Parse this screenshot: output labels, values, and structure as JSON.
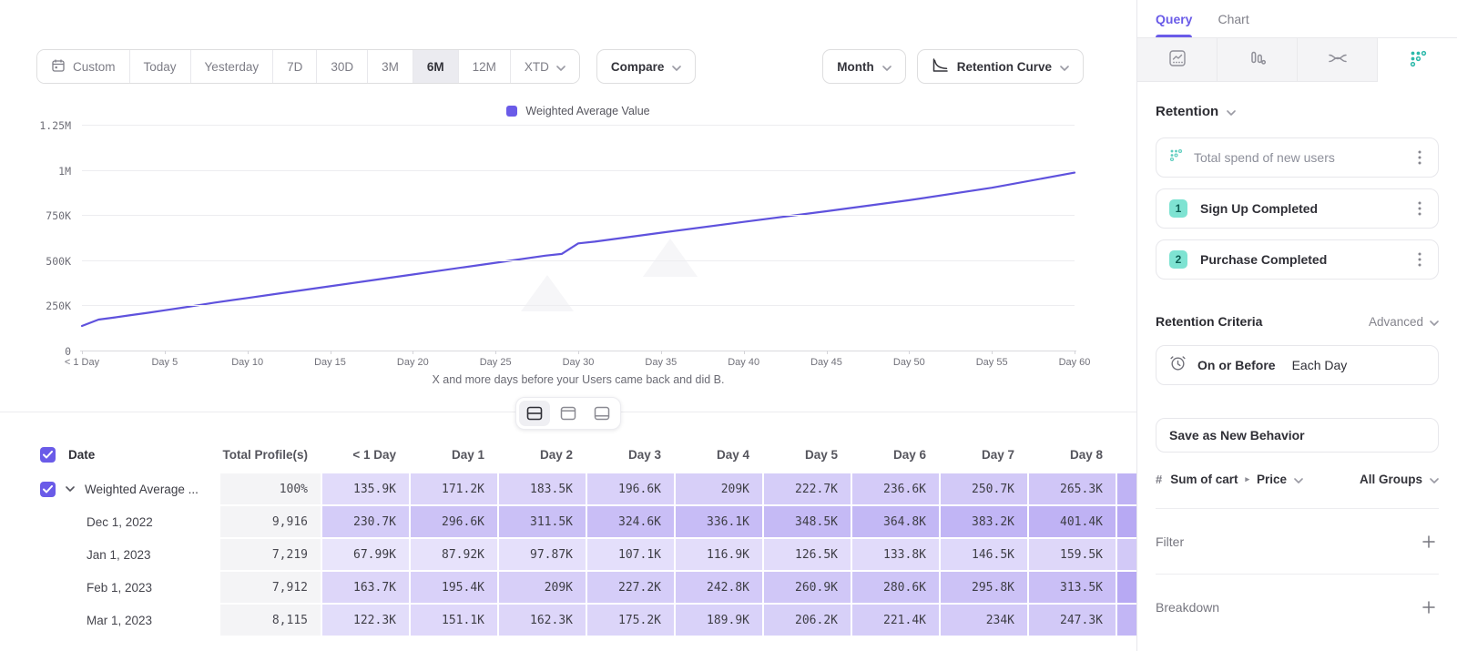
{
  "toolbar": {
    "ranges": [
      {
        "label": "Custom",
        "icon": "calendar"
      },
      {
        "label": "Today"
      },
      {
        "label": "Yesterday"
      },
      {
        "label": "7D"
      },
      {
        "label": "30D"
      },
      {
        "label": "3M"
      },
      {
        "label": "6M"
      },
      {
        "label": "12M"
      },
      {
        "label": "XTD",
        "chevron": true
      }
    ],
    "selected_range": "6M",
    "compare_label": "Compare",
    "granularity_label": "Month",
    "chart_type_label": "Retention Curve"
  },
  "chart_data": {
    "type": "line",
    "title": "",
    "xlabel": "X and more days before your Users came back and did B.",
    "ylabel": "",
    "ylim": [
      0,
      1250000
    ],
    "xlim_days": [
      0,
      60
    ],
    "grid": "horizontal",
    "legend_position": "top-center",
    "line_color": "#5f52dd",
    "y_tick_labels": [
      "1.25M",
      "1M",
      "750K",
      "500K",
      "250K",
      "0"
    ],
    "x_tick_labels": [
      "< 1 Day",
      "Day 5",
      "Day 10",
      "Day 15",
      "Day 20",
      "Day 25",
      "Day 30",
      "Day 35",
      "Day 40",
      "Day 45",
      "Day 50",
      "Day 55",
      "Day 60"
    ],
    "series": [
      {
        "name": "Weighted Average Value",
        "x": [
          0,
          1,
          2,
          3,
          4,
          5,
          6,
          7,
          8,
          10,
          12,
          15,
          18,
          20,
          22,
          25,
          28,
          29,
          30,
          31,
          35,
          40,
          45,
          50,
          55,
          60
        ],
        "y": [
          136000,
          171200,
          183500,
          196600,
          209000,
          222700,
          236600,
          250700,
          265300,
          291000,
          317000,
          356000,
          395000,
          421000,
          447000,
          486000,
          525000,
          535000,
          593000,
          603000,
          652000,
          712000,
          771000,
          832000,
          901000,
          985000
        ]
      }
    ]
  },
  "table": {
    "headers": [
      "Date",
      "Total Profile(s)",
      "< 1 Day",
      "Day 1",
      "Day 2",
      "Day 3",
      "Day 4",
      "Day 5",
      "Day 6",
      "Day 7",
      "Day 8"
    ],
    "rows": [
      {
        "label": "Weighted Average ...",
        "expandable": true,
        "checked": true,
        "total": "100%",
        "values": [
          "135.9K",
          "171.2K",
          "183.5K",
          "196.6K",
          "209K",
          "222.7K",
          "236.6K",
          "250.7K",
          "265.3K"
        ]
      },
      {
        "label": "Dec 1, 2022",
        "total": "9,916",
        "values": [
          "230.7K",
          "296.6K",
          "311.5K",
          "324.6K",
          "336.1K",
          "348.5K",
          "364.8K",
          "383.2K",
          "401.4K"
        ]
      },
      {
        "label": "Jan 1, 2023",
        "total": "7,219",
        "values": [
          "67.99K",
          "87.92K",
          "97.87K",
          "107.1K",
          "116.9K",
          "126.5K",
          "133.8K",
          "146.5K",
          "159.5K"
        ]
      },
      {
        "label": "Feb 1, 2023",
        "total": "7,912",
        "values": [
          "163.7K",
          "195.4K",
          "209K",
          "227.2K",
          "242.8K",
          "260.9K",
          "280.6K",
          "295.8K",
          "313.5K"
        ]
      },
      {
        "label": "Mar 1, 2023",
        "total": "8,115",
        "values": [
          "122.3K",
          "151.1K",
          "162.3K",
          "175.2K",
          "189.9K",
          "206.2K",
          "221.4K",
          "234K",
          "247.3K"
        ]
      }
    ]
  },
  "panel": {
    "tabs": [
      {
        "label": "Query",
        "active": true
      },
      {
        "label": "Chart",
        "active": false
      }
    ],
    "chart_type_icons": [
      {
        "name": "insights-line-icon",
        "selected": false
      },
      {
        "name": "funnel-bars-icon",
        "selected": false
      },
      {
        "name": "flows-icon",
        "selected": false
      },
      {
        "name": "retention-dots-icon",
        "selected": true
      }
    ],
    "section_label": "Retention",
    "behavior_title": "Total spend of new users",
    "steps": [
      {
        "number": "1",
        "label": "Sign Up Completed"
      },
      {
        "number": "2",
        "label": "Purchase Completed"
      }
    ],
    "criteria_label": "Retention Criteria",
    "criteria_mode": "Advanced",
    "criteria_condition": "On or Before",
    "criteria_value": "Each Day",
    "save_button": "Save as New Behavior",
    "measure": "Sum of cart",
    "measure_property": "Price",
    "groups": "All Groups",
    "filter_label": "Filter",
    "breakdown_label": "Breakdown"
  },
  "colors": {
    "accent_purple": "#6a5be8",
    "line_purple": "#5f52dd",
    "heatmap_base": "rgba(124,98,233,1)",
    "teal": "#2cb9aa",
    "badge_teal_bg": "#7ee3d2",
    "badge_teal_text": "#0b5d52"
  }
}
